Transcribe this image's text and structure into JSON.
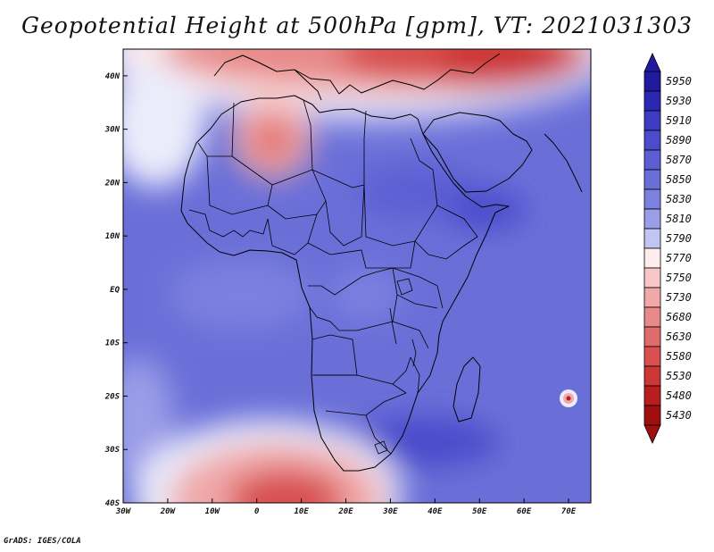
{
  "title": "Geopotential Height at 500hPa [gpm], VT: 2021031303",
  "footer": "GrADS: IGES/COLA",
  "map": {
    "projection": "latlon",
    "lon_range": [
      -30,
      75
    ],
    "lat_range": [
      -40,
      45
    ],
    "lon_ticks": [
      {
        "lon": -30,
        "label": "30W"
      },
      {
        "lon": -20,
        "label": "20W"
      },
      {
        "lon": -10,
        "label": "10W"
      },
      {
        "lon": 0,
        "label": "0"
      },
      {
        "lon": 10,
        "label": "10E"
      },
      {
        "lon": 20,
        "label": "20E"
      },
      {
        "lon": 30,
        "label": "30E"
      },
      {
        "lon": 40,
        "label": "40E"
      },
      {
        "lon": 50,
        "label": "50E"
      },
      {
        "lon": 60,
        "label": "60E"
      },
      {
        "lon": 70,
        "label": "70E"
      }
    ],
    "lat_ticks": [
      {
        "lat": 40,
        "label": "40N"
      },
      {
        "lat": 30,
        "label": "30N"
      },
      {
        "lat": 20,
        "label": "20N"
      },
      {
        "lat": 10,
        "label": "10N"
      },
      {
        "lat": 0,
        "label": "EQ"
      },
      {
        "lat": -10,
        "label": "10S"
      },
      {
        "lat": -20,
        "label": "20S"
      },
      {
        "lat": -30,
        "label": "30S"
      },
      {
        "lat": -40,
        "label": "40S"
      }
    ],
    "field_features": [
      {
        "name": "background-low-heights",
        "lon": 25,
        "lat": 0,
        "value": 5840
      },
      {
        "name": "north-trough",
        "lon": 42,
        "lat": 44,
        "value": 5540
      },
      {
        "name": "north-band",
        "lon": 20,
        "lat": 36,
        "value": 5700
      },
      {
        "name": "saharan-cutoff-low",
        "lon": 2,
        "lat": 30,
        "value": 5690
      },
      {
        "name": "atlantic-ridge-west",
        "lon": -26,
        "lat": 32,
        "value": 5790
      },
      {
        "name": "southwest-trough",
        "lon": 8,
        "lat": -40,
        "value": 5480
      },
      {
        "name": "sahel-high",
        "lon": 35,
        "lat": 21,
        "value": 5875
      },
      {
        "name": "somalia-high",
        "lon": 48,
        "lat": 15,
        "value": 5875
      },
      {
        "name": "southern-high",
        "lon": 42,
        "lat": -30,
        "value": 5880
      },
      {
        "name": "indian-ocean-vortex",
        "lon": 70,
        "lat": -20.5,
        "value": 5500
      }
    ]
  },
  "colorbar": {
    "levels": [
      "5950",
      "5930",
      "5910",
      "5890",
      "5870",
      "5850",
      "5830",
      "5810",
      "5790",
      "5770",
      "5750",
      "5730",
      "5680",
      "5630",
      "5580",
      "5530",
      "5480",
      "5430"
    ],
    "colors": [
      "#211a9e",
      "#2b27b0",
      "#3d3bc1",
      "#4a4ccb",
      "#5b5fd3",
      "#6a6fd8",
      "#7c80df",
      "#9a9de7",
      "#c2c4f1",
      "#ebecfb",
      "#fdeded",
      "#f7c6c6",
      "#f0a8a8",
      "#e88a8a",
      "#e06b6b",
      "#d85050",
      "#cc3636",
      "#b81e1e",
      "#a00f0f"
    ]
  }
}
